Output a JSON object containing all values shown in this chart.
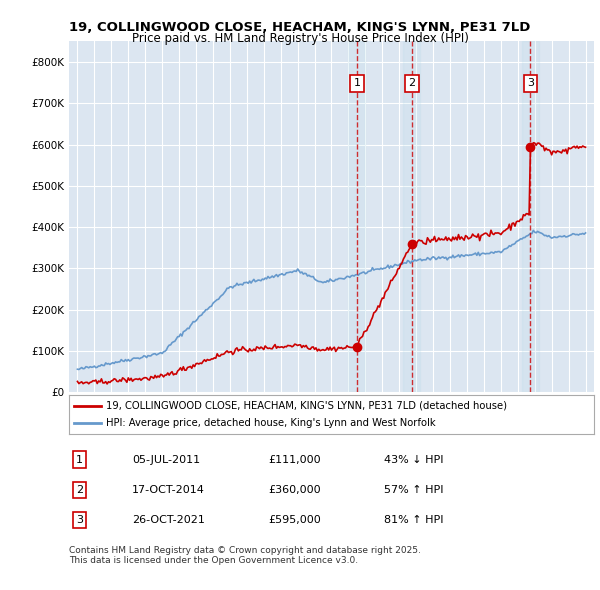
{
  "title_line1": "19, COLLINGWOOD CLOSE, HEACHAM, KING'S LYNN, PE31 7LD",
  "title_line2": "Price paid vs. HM Land Registry's House Price Index (HPI)",
  "xlabel": "",
  "ylabel": "",
  "background_color": "#ffffff",
  "plot_bg_color": "#dce6f1",
  "grid_color": "#ffffff",
  "red_line_color": "#cc0000",
  "blue_line_color": "#6699cc",
  "transaction_dates": [
    "2011-07-05",
    "2014-10-17",
    "2021-10-26"
  ],
  "transaction_prices": [
    111000,
    360000,
    595000
  ],
  "transaction_labels": [
    "1",
    "2",
    "3"
  ],
  "transaction_info": [
    {
      "label": "1",
      "date": "05-JUL-2011",
      "price": "£111,000",
      "pct": "43% ↓ HPI"
    },
    {
      "label": "2",
      "date": "17-OCT-2014",
      "price": "£360,000",
      "pct": "57% ↑ HPI"
    },
    {
      "label": "3",
      "date": "26-OCT-2021",
      "price": "£595,000",
      "pct": "81% ↑ HPI"
    }
  ],
  "legend_line1": "19, COLLINGWOOD CLOSE, HEACHAM, KING'S LYNN, PE31 7LD (detached house)",
  "legend_line2": "HPI: Average price, detached house, King's Lynn and West Norfolk",
  "footnote": "Contains HM Land Registry data © Crown copyright and database right 2025.\nThis data is licensed under the Open Government Licence v3.0.",
  "ylim": [
    0,
    850000
  ],
  "yticks": [
    0,
    100000,
    200000,
    300000,
    400000,
    500000,
    600000,
    700000,
    800000
  ]
}
